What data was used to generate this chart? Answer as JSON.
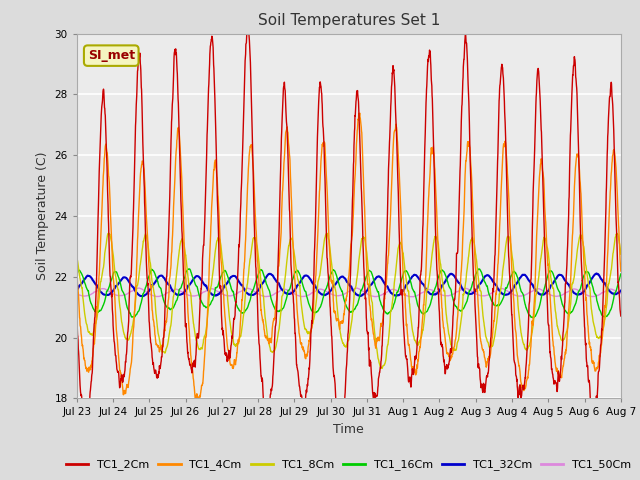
{
  "title": "Soil Temperatures Set 1",
  "xlabel": "Time",
  "ylabel": "Soil Temperature (C)",
  "ylim": [
    18,
    30
  ],
  "yticks": [
    18,
    20,
    22,
    24,
    26,
    28,
    30
  ],
  "annotation": "SI_met",
  "bg_color": "#dcdcdc",
  "plot_bg_color": "#ebebeb",
  "series": [
    {
      "label": "TC1_2Cm",
      "color": "#cc0000",
      "amp_up": 7.5,
      "amp_down": 3.2,
      "phase": 0.0,
      "mean": 21.5,
      "lw": 1.0
    },
    {
      "label": "TC1_4Cm",
      "color": "#ff8800",
      "amp_up": 5.0,
      "amp_down": 2.2,
      "phase": 0.08,
      "mean": 21.5,
      "lw": 1.0
    },
    {
      "label": "TC1_8Cm",
      "color": "#cccc00",
      "amp_up": 1.8,
      "amp_down": 1.8,
      "phase": 0.18,
      "mean": 21.5,
      "lw": 1.0
    },
    {
      "label": "TC1_16Cm",
      "color": "#00cc00",
      "amp_up": 0.7,
      "amp_down": 0.7,
      "phase": 0.35,
      "mean": 21.5,
      "lw": 1.0
    },
    {
      "label": "TC1_32Cm",
      "color": "#0000cc",
      "amp_up": 0.32,
      "amp_down": 0.32,
      "phase": 0.6,
      "mean": 21.72,
      "lw": 1.5
    },
    {
      "label": "TC1_50Cm",
      "color": "#dd88dd",
      "amp_up": 0.12,
      "amp_down": 0.12,
      "phase": 1.0,
      "mean": 21.48,
      "lw": 1.0
    }
  ],
  "xtick_labels": [
    "Jul 23",
    "Jul 24",
    "Jul 25",
    "Jul 26",
    "Jul 27",
    "Jul 28",
    "Jul 29",
    "Jul 30",
    "Jul 31",
    "Aug 1",
    "Aug 2",
    "Aug 3",
    "Aug 4",
    "Aug 5",
    "Aug 6",
    "Aug 7"
  ],
  "n_days": 15,
  "pts_per_day": 144
}
